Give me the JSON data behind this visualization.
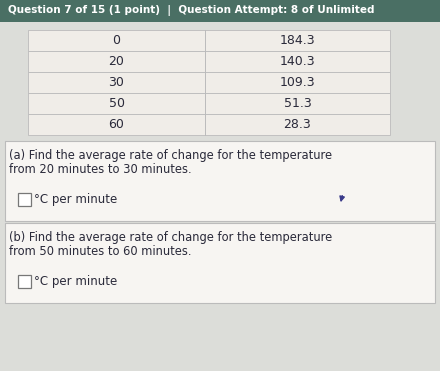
{
  "header_text": "Question 7 of 15 (1 point)  |  Question Attempt: 8 of Unlimited",
  "header_bg": "#4a6f64",
  "header_text_color": "#ffffff",
  "table_col1": [
    0,
    20,
    30,
    50,
    60
  ],
  "table_col2": [
    "184.3",
    "140.3",
    "109.3",
    "51.3",
    "28.3"
  ],
  "table_bg": "#f0ede8",
  "table_border": "#bbbbbb",
  "table_header_bg": "#dbd7d0",
  "part_a_text_line1": "(a) Find the average rate of change for the temperature",
  "part_a_text_line2": "from 20 minutes to 30 minutes.",
  "part_a_answer": "°C per minute",
  "part_b_text_line1": "(b) Find the average rate of change for the temperature",
  "part_b_text_line2": "from 50 minutes to 60 minutes.",
  "part_b_answer": "°C per minute",
  "body_bg": "#dcddd9",
  "box_bg": "#f7f5f2",
  "box_border": "#bbbbbb",
  "text_color": "#2a2a3a",
  "input_box_color": "#ffffff",
  "input_box_border": "#777777",
  "cursor_color": "#3a3a8a"
}
